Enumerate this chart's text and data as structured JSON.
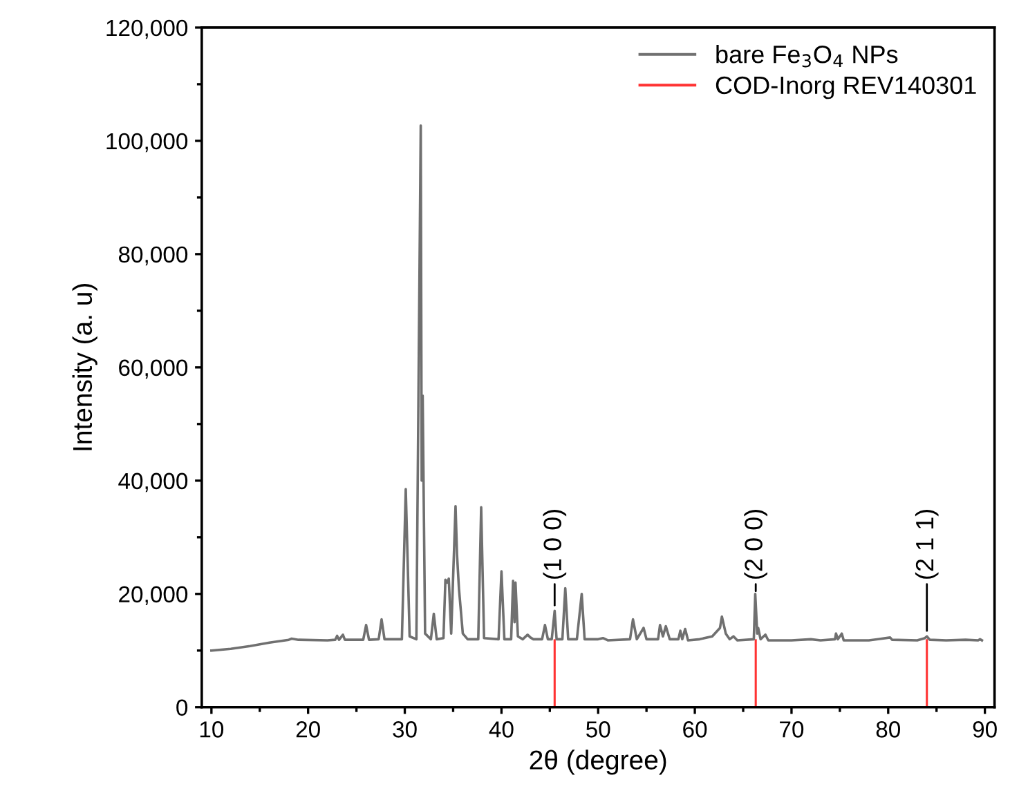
{
  "chart_data": {
    "type": "line",
    "xlabel": "2θ (degree)",
    "ylabel": "Intensity (a. u)",
    "xlim": [
      9,
      91
    ],
    "ylim": [
      0,
      120000
    ],
    "xticks": [
      10,
      {
        "value": 15,
        "label": null
      },
      20,
      {
        "value": 25,
        "label": null
      },
      30,
      {
        "value": 35,
        "label": null
      },
      40,
      {
        "value": 45,
        "label": null
      },
      50,
      {
        "value": 55,
        "label": null
      },
      60,
      {
        "value": 65,
        "label": null
      },
      70,
      {
        "value": 75,
        "label": null
      },
      80,
      {
        "value": 85,
        "label": null
      },
      90
    ],
    "yticks": [
      {
        "value": 0,
        "label": "0"
      },
      {
        "value": 10000,
        "label": null
      },
      {
        "value": 20000,
        "label": "20,000"
      },
      {
        "value": 30000,
        "label": null
      },
      {
        "value": 40000,
        "label": "40,000"
      },
      {
        "value": 50000,
        "label": null
      },
      {
        "value": 60000,
        "label": "60,000"
      },
      {
        "value": 70000,
        "label": null
      },
      {
        "value": 80000,
        "label": "80,000"
      },
      {
        "value": 90000,
        "label": null
      },
      {
        "value": 100000,
        "label": "100,000"
      },
      {
        "value": 110000,
        "label": null
      },
      {
        "value": 120000,
        "label": "120,000"
      }
    ],
    "legend": "top right",
    "grid": false,
    "series": [
      {
        "name": "bare Fe$_{3}$O$_{4}$ NPs",
        "color": "#707070",
        "x": [
          10,
          12,
          14,
          16,
          18,
          18.3,
          19,
          22,
          22.8,
          23,
          23.2,
          23.6,
          23.8,
          25.7,
          26,
          26.3,
          27.3,
          27.6,
          27.9,
          29.7,
          30.1,
          30.5,
          31.2,
          31.65,
          31.75,
          31.85,
          32.1,
          32.7,
          33.0,
          33.3,
          34.0,
          34.2,
          34.4,
          34.55,
          34.8,
          35.25,
          35.4,
          35.6,
          36,
          36.5,
          37.6,
          37.9,
          38.2,
          39.7,
          40.0,
          40.3,
          41.0,
          41.2,
          41.35,
          41.45,
          41.7,
          42.2,
          42.7,
          43.0,
          43.3,
          44.2,
          44.5,
          44.8,
          45.2,
          45.5,
          45.7,
          46.3,
          46.6,
          46.9,
          47.8,
          48.3,
          48.6,
          50,
          50.5,
          51,
          53.3,
          53.6,
          54,
          54.7,
          55,
          56.2,
          56.4,
          56.7,
          57,
          57.4,
          58.3,
          58.5,
          58.7,
          59,
          59.3,
          60.5,
          61.8,
          62.6,
          62.8,
          63.2,
          63.6,
          64,
          64.4,
          66.1,
          66.25,
          66.45,
          66.55,
          66.8,
          67.3,
          67.6,
          70,
          72,
          73,
          74.5,
          74.6,
          74.8,
          75.2,
          75.4,
          78,
          80.2,
          80.4,
          83,
          83.8,
          84.0,
          84.3,
          86,
          88,
          89.3,
          89.5,
          89.7
        ],
        "values": [
          10000,
          10300,
          10800,
          11400,
          11900,
          12100,
          11900,
          11800,
          11900,
          12600,
          11900,
          12800,
          11900,
          11900,
          14500,
          11900,
          12000,
          15500,
          12000,
          12000,
          38500,
          12500,
          12000,
          102700,
          40000,
          55000,
          13000,
          12000,
          16500,
          12000,
          12200,
          22500,
          22000,
          22700,
          13000,
          35500,
          27000,
          21000,
          13000,
          12000,
          12000,
          35300,
          12200,
          12000,
          24000,
          12000,
          12000,
          22300,
          15000,
          22000,
          12500,
          12000,
          12800,
          12300,
          12000,
          12000,
          14500,
          12000,
          12000,
          17000,
          12000,
          12000,
          21000,
          12000,
          12000,
          20000,
          12000,
          12000,
          12200,
          11800,
          12000,
          15500,
          12000,
          14000,
          12000,
          12000,
          14500,
          12500,
          14300,
          12000,
          12000,
          13500,
          12000,
          13800,
          11800,
          12000,
          12500,
          14000,
          16000,
          13000,
          12000,
          12500,
          11800,
          12000,
          20000,
          13000,
          14000,
          12000,
          12800,
          11800,
          11800,
          12000,
          11800,
          12000,
          13000,
          12000,
          13000,
          11800,
          11800,
          12300,
          11900,
          11800,
          12200,
          12500,
          11900,
          11800,
          11900,
          11800,
          12000,
          11800
        ]
      },
      {
        "name": "COD-Inorg REV140301",
        "type": "bar",
        "color": "#ff3333",
        "x": [
          45.5,
          66.3,
          84.0
        ],
        "values": [
          12000,
          12000,
          12000
        ]
      }
    ],
    "annotations": [
      {
        "text": "(1 0 0)",
        "x": 45.5,
        "y": 17500
      },
      {
        "text": "(2 0 0)",
        "x": 66.3,
        "y": 20000
      },
      {
        "text": "(2 1 1)",
        "x": 84.0,
        "y": 13000
      }
    ]
  }
}
